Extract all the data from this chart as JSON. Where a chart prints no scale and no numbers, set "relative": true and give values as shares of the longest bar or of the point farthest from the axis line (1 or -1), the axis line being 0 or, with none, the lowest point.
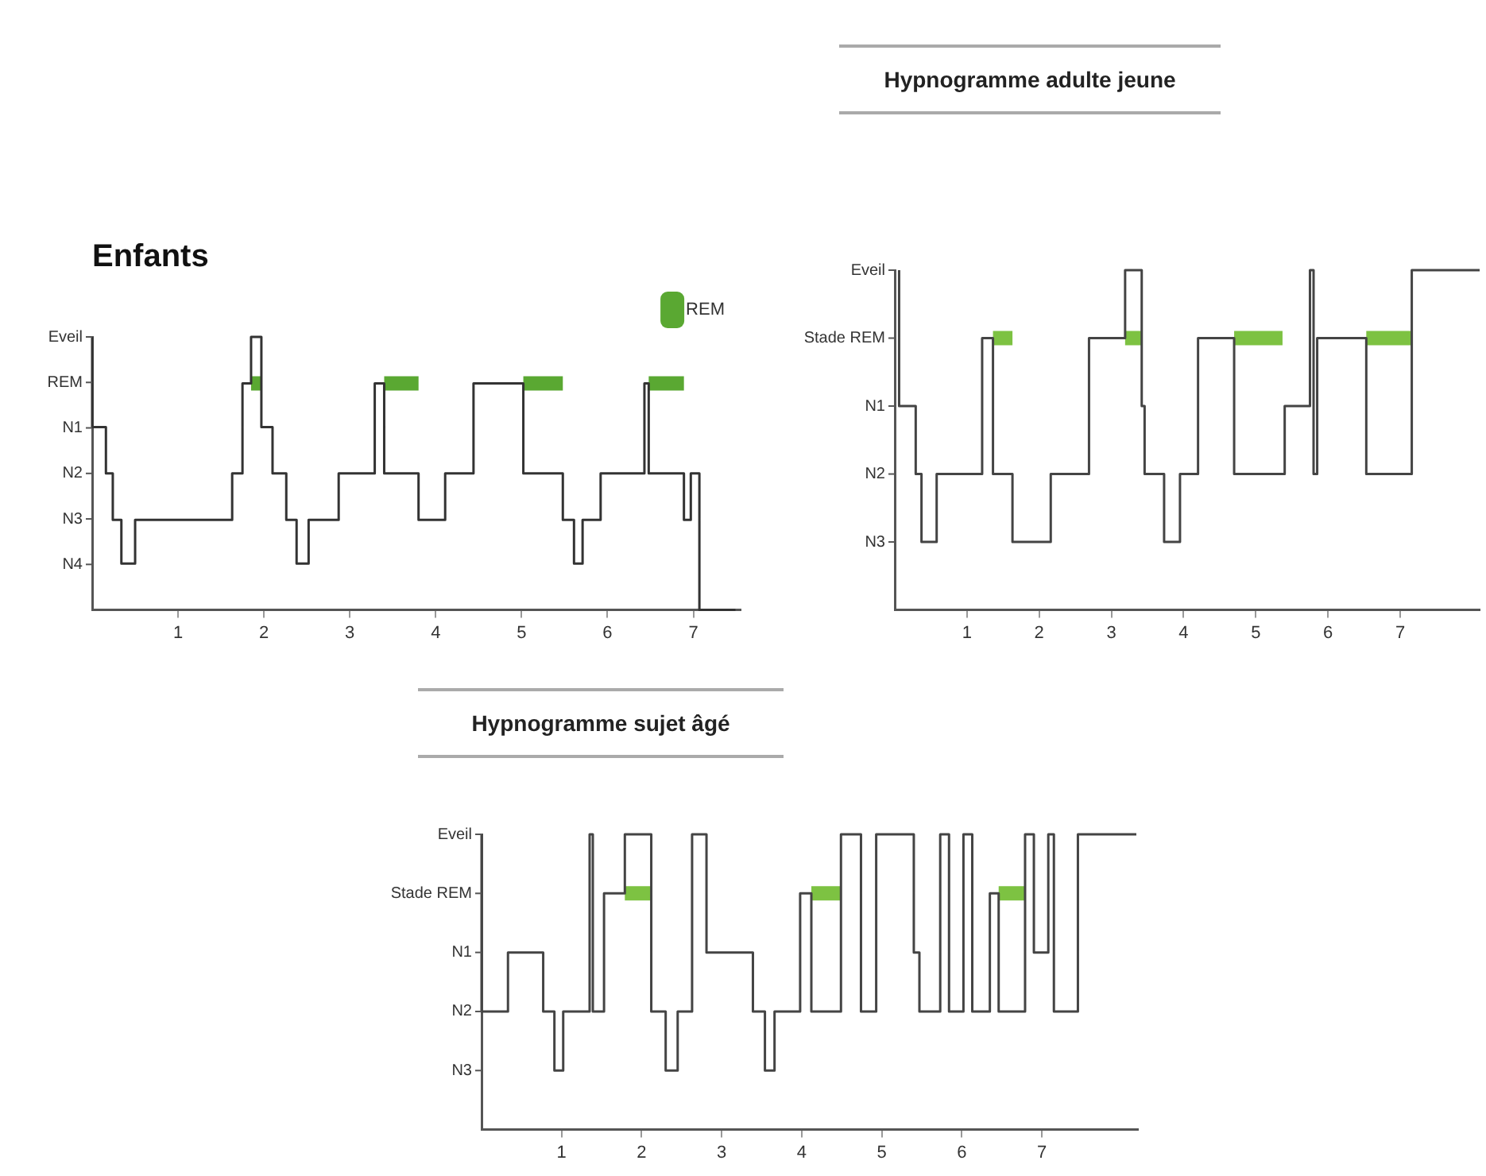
{
  "chart_data": [
    {
      "type": "step",
      "title": "Enfants",
      "legend": "top right",
      "grid": false,
      "marker": "none",
      "relative": true,
      "xlim": [
        0,
        7.55
      ],
      "xticks": [
        1,
        2,
        3,
        4,
        5,
        6,
        7
      ],
      "annotations": [
        "Eveil",
        "REM",
        "N1",
        "N2",
        "N3",
        "N4"
      ],
      "series": [
        {
          "color": "#333333",
          "x": [
            0,
            0.16,
            0.24,
            0.34,
            0.5,
            1.63,
            1.75,
            1.85,
            1.97,
            2.1,
            2.26,
            2.38,
            2.52,
            2.87,
            3.29,
            3.4,
            3.8,
            4.11,
            4.44,
            5.02,
            5.48,
            5.61,
            5.71,
            5.92,
            6.43,
            6.48,
            6.89,
            6.97,
            7.07,
            7.49
          ],
          "values": [
            1,
            0.67,
            0.5,
            0.33,
            0.17,
            0.33,
            0.5,
            0.83,
            1,
            0.67,
            0.5,
            0.33,
            0.17,
            0.33,
            0.5,
            0.83,
            0.5,
            0.33,
            0.5,
            0.83,
            0.5,
            0.33,
            0.17,
            0.33,
            0.5,
            0.83,
            0.5,
            0.33,
            0.5,
            0
          ]
        },
        {
          "name": "REM",
          "color": "#5aa832",
          "x": [
            1.85,
            1.97,
            1.98,
            3.4,
            3.8,
            3.81,
            5.02,
            5.48,
            5.49,
            6.48,
            6.89
          ],
          "values": [
            0.83,
            0.83,
            null,
            0.83,
            0.83,
            null,
            0.83,
            0.83,
            null,
            0.83,
            0.83
          ]
        }
      ]
    },
    {
      "type": "step",
      "title": "Hypnogramme adulte jeune",
      "grid": false,
      "marker": "none",
      "relative": true,
      "xlim": [
        0,
        8.1
      ],
      "xticks": [
        1,
        2,
        3,
        4,
        5,
        6,
        7
      ],
      "annotations": [
        "Eveil",
        "Stade REM",
        "N1",
        "N2",
        "N3"
      ],
      "series": [
        {
          "color": "#444444",
          "x": [
            0.06,
            0.29,
            0.37,
            0.58,
            1.21,
            1.36,
            1.63,
            2.16,
            2.69,
            3.19,
            3.42,
            3.46,
            3.73,
            3.95,
            4.2,
            4.7,
            5.4,
            5.75,
            5.8,
            5.85,
            6.53,
            7.16,
            7.92,
            8.1
          ],
          "values": [
            1,
            0.6,
            0.4,
            0.2,
            0.4,
            0.8,
            0.4,
            0.2,
            0.4,
            0.8,
            1,
            0.6,
            0.4,
            0.2,
            0.4,
            0.8,
            0.4,
            0.6,
            1,
            0.4,
            0.8,
            0.4,
            1,
            1
          ]
        },
        {
          "color": "#7dc242",
          "x": [
            1.36,
            1.63,
            1.64,
            3.19,
            3.42,
            3.43,
            4.7,
            5.37,
            5.38,
            6.53,
            7.16
          ],
          "values": [
            0.8,
            0.8,
            null,
            0.8,
            0.8,
            null,
            0.8,
            0.8,
            null,
            0.8,
            0.8
          ]
        }
      ]
    },
    {
      "type": "step",
      "title": "Hypnogramme sujet âgé",
      "grid": false,
      "marker": "none",
      "relative": true,
      "xlim": [
        0,
        8.2
      ],
      "xticks": [
        1,
        2,
        3,
        4,
        5,
        6,
        7
      ],
      "annotations": [
        "Eveil",
        "Stade REM",
        "N1",
        "N2",
        "N3"
      ],
      "series": [
        {
          "color": "#444444",
          "x": [
            0,
            0.33,
            0.77,
            0.91,
            1.02,
            1.35,
            1.39,
            1.53,
            1.79,
            2.12,
            2.3,
            2.45,
            2.63,
            2.81,
            3.39,
            3.54,
            3.66,
            3.98,
            4.12,
            4.49,
            4.74,
            4.93,
            5.4,
            5.47,
            5.73,
            5.84,
            6.02,
            6.13,
            6.35,
            6.46,
            6.79,
            6.9,
            7.08,
            7.15,
            7.45,
            7.48,
            8.18
          ],
          "values": [
            1,
            0.4,
            0.6,
            0.4,
            0.2,
            0.4,
            1,
            0.4,
            0.8,
            1,
            0.4,
            0.2,
            0.4,
            1,
            0.6,
            0.4,
            0.2,
            0.4,
            0.8,
            0.4,
            1,
            0.4,
            1,
            0.6,
            0.4,
            1,
            0.4,
            1,
            0.4,
            0.8,
            0.4,
            1,
            0.6,
            1,
            0.4,
            1,
            1
          ]
        },
        {
          "color": "#7dc242",
          "x": [
            1.79,
            2.12,
            2.13,
            4.12,
            4.49,
            4.5,
            6.46,
            6.79
          ],
          "values": [
            0.8,
            0.8,
            null,
            0.8,
            0.8,
            null,
            0.8,
            0.8
          ]
        }
      ]
    }
  ]
}
